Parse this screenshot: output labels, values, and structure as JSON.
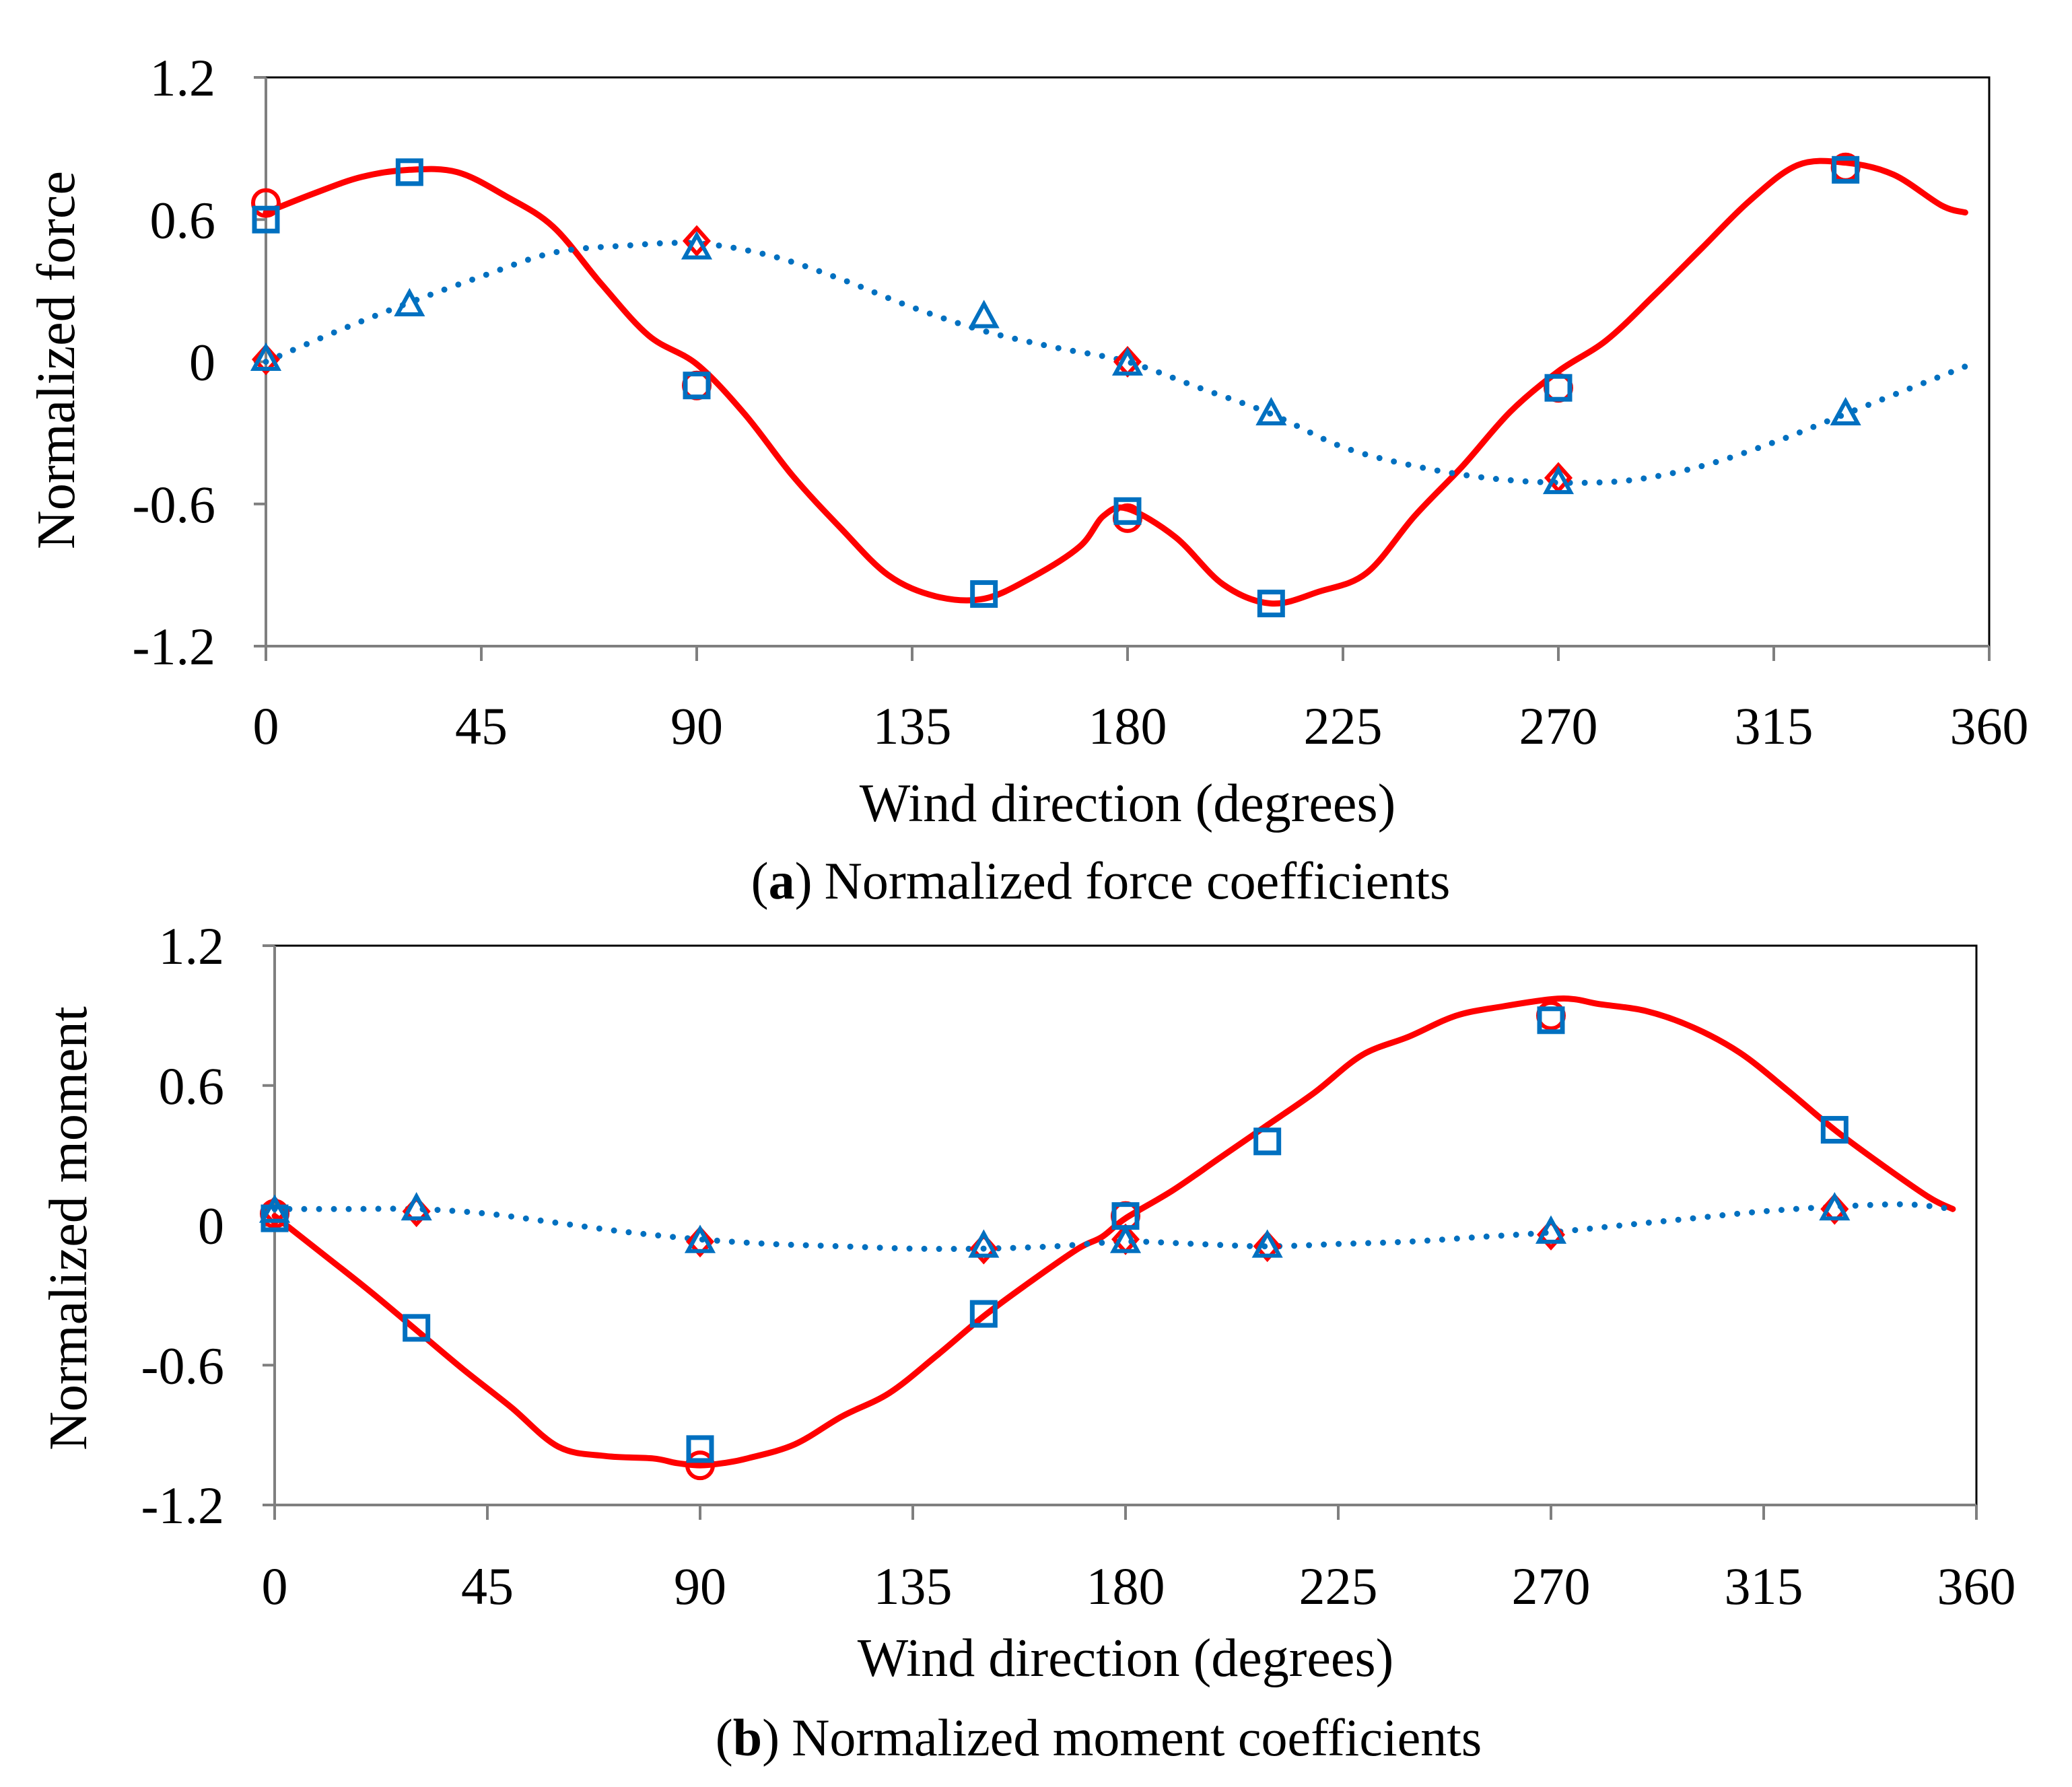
{
  "figure": {
    "colors": {
      "solid": "#ff0000",
      "dotted": "#0070c0",
      "circle": "#ff0000",
      "square": "#0070c0",
      "triangle": "#0070c0",
      "axis": "#7f7f7f",
      "frame": "#000000"
    }
  },
  "chart_data": [
    {
      "type": "line",
      "caption_letter": "a",
      "caption_text": "Normalized force coefficients",
      "caption_open": "(",
      "caption_close": ")",
      "xlabel": "Wind direction (degrees)",
      "ylabel": "Normalized force",
      "xlim": [
        0,
        360
      ],
      "ylim": [
        -1.2,
        1.2
      ],
      "xticks": [
        0,
        45,
        90,
        135,
        180,
        225,
        270,
        315,
        360
      ],
      "yticks": [
        1.2,
        0.6,
        0,
        -0.6,
        -1.2
      ],
      "ytick_labels": [
        "1.2",
        "0.6",
        "0",
        "-0.6",
        "-1.2"
      ],
      "series": [
        {
          "name": "solid line",
          "style": "solid",
          "x": [
            0,
            10,
            20,
            30,
            40,
            50,
            60,
            70,
            80,
            90,
            100,
            110,
            120,
            130,
            140,
            150,
            160,
            170,
            175,
            180,
            190,
            200,
            210,
            220,
            230,
            240,
            250,
            260,
            270,
            280,
            290,
            300,
            310,
            320,
            330,
            340,
            350,
            355
          ],
          "y": [
            0.63,
            0.71,
            0.78,
            0.81,
            0.8,
            0.7,
            0.57,
            0.33,
            0.11,
            -0.01,
            -0.22,
            -0.48,
            -0.7,
            -0.9,
            -0.99,
            -1.0,
            -0.91,
            -0.78,
            -0.65,
            -0.62,
            -0.74,
            -0.94,
            -1.02,
            -0.97,
            -0.89,
            -0.65,
            -0.44,
            -0.21,
            -0.04,
            0.09,
            0.28,
            0.48,
            0.68,
            0.83,
            0.84,
            0.79,
            0.66,
            0.63
          ]
        },
        {
          "name": "dotted line",
          "style": "dotted",
          "x": [
            0,
            15,
            30,
            45,
            60,
            75,
            90,
            105,
            120,
            135,
            150,
            165,
            180,
            195,
            210,
            225,
            240,
            255,
            270,
            285,
            300,
            315,
            330,
            345,
            355
          ],
          "y": [
            0.0,
            0.13,
            0.25,
            0.36,
            0.46,
            0.49,
            0.5,
            0.45,
            0.35,
            0.23,
            0.13,
            0.06,
            0.0,
            -0.11,
            -0.22,
            -0.36,
            -0.44,
            -0.49,
            -0.51,
            -0.5,
            -0.44,
            -0.34,
            -0.22,
            -0.1,
            -0.02
          ]
        },
        {
          "name": "circle markers",
          "marker": "circle",
          "x": [
            0,
            90,
            180,
            270,
            330
          ],
          "y": [
            0.67,
            -0.1,
            -0.66,
            -0.11,
            0.82
          ]
        },
        {
          "name": "square markers",
          "marker": "square",
          "x": [
            0,
            30,
            90,
            150,
            180,
            210,
            270,
            330
          ],
          "y": [
            0.6,
            0.8,
            -0.1,
            -0.98,
            -0.63,
            -1.02,
            -0.11,
            0.81
          ]
        },
        {
          "name": "diamond markers",
          "marker": "diamond",
          "x": [
            0,
            90,
            180,
            270
          ],
          "y": [
            0.01,
            0.51,
            0.0,
            -0.49
          ]
        },
        {
          "name": "triangle markers",
          "marker": "triangle",
          "x": [
            0,
            30,
            90,
            150,
            180,
            210,
            270,
            330
          ],
          "y": [
            0.01,
            0.24,
            0.48,
            0.19,
            -0.01,
            -0.22,
            -0.51,
            -0.22
          ]
        }
      ]
    },
    {
      "type": "line",
      "caption_letter": "b",
      "caption_text": "Normalized moment coefficients",
      "caption_open": "(",
      "caption_close": ")",
      "xlabel": "Wind direction (degrees)",
      "ylabel": "Normalized moment",
      "xlim": [
        0,
        360
      ],
      "ylim": [
        -1.2,
        1.2
      ],
      "xticks": [
        0,
        45,
        90,
        135,
        180,
        225,
        270,
        315,
        360
      ],
      "yticks": [
        1.2,
        0.6,
        0,
        -0.6,
        -1.2
      ],
      "ytick_labels": [
        "1.2",
        "0.6",
        "0",
        "-0.6",
        "-1.2"
      ],
      "series": [
        {
          "name": "solid line",
          "style": "solid",
          "x": [
            0,
            10,
            20,
            30,
            40,
            50,
            60,
            70,
            80,
            85,
            90,
            95,
            100,
            110,
            120,
            130,
            140,
            150,
            160,
            170,
            175,
            180,
            190,
            200,
            210,
            220,
            230,
            240,
            250,
            260,
            270,
            275,
            280,
            290,
            300,
            310,
            320,
            330,
            340,
            350,
            355
          ],
          "y": [
            0.04,
            -0.12,
            -0.28,
            -0.45,
            -0.62,
            -0.78,
            -0.95,
            -0.99,
            -1.0,
            -1.02,
            -1.03,
            -1.02,
            -1.0,
            -0.94,
            -0.82,
            -0.72,
            -0.56,
            -0.39,
            -0.24,
            -0.1,
            -0.05,
            0.03,
            0.15,
            0.29,
            0.43,
            0.57,
            0.73,
            0.81,
            0.9,
            0.94,
            0.97,
            0.97,
            0.95,
            0.92,
            0.85,
            0.74,
            0.58,
            0.41,
            0.26,
            0.12,
            0.07
          ]
        },
        {
          "name": "dotted line",
          "style": "dotted",
          "x": [
            0,
            15,
            30,
            45,
            60,
            75,
            90,
            105,
            120,
            135,
            150,
            165,
            180,
            195,
            210,
            225,
            240,
            255,
            270,
            285,
            300,
            315,
            330,
            345,
            355
          ],
          "y": [
            0.07,
            0.07,
            0.07,
            0.05,
            0.01,
            -0.03,
            -0.06,
            -0.08,
            -0.09,
            -0.1,
            -0.1,
            -0.09,
            -0.07,
            -0.08,
            -0.09,
            -0.08,
            -0.07,
            -0.05,
            -0.03,
            0.0,
            0.03,
            0.06,
            0.08,
            0.09,
            0.07
          ]
        },
        {
          "name": "circle markers",
          "marker": "circle",
          "x": [
            0,
            90,
            180,
            270
          ],
          "y": [
            0.05,
            -1.03,
            0.04,
            0.9
          ]
        },
        {
          "name": "square markers",
          "marker": "square",
          "x": [
            0,
            30,
            90,
            150,
            180,
            210,
            270,
            330
          ],
          "y": [
            0.03,
            -0.44,
            -0.96,
            -0.38,
            0.04,
            0.36,
            0.88,
            0.41
          ]
        },
        {
          "name": "diamond markers",
          "marker": "diamond",
          "x": [
            0,
            30,
            90,
            150,
            180,
            210,
            270,
            330
          ],
          "y": [
            0.06,
            0.06,
            -0.07,
            -0.1,
            -0.06,
            -0.09,
            -0.04,
            0.07
          ]
        },
        {
          "name": "triangle markers",
          "marker": "triangle",
          "x": [
            0,
            30,
            90,
            150,
            180,
            210,
            270,
            330
          ],
          "y": [
            0.06,
            0.07,
            -0.07,
            -0.09,
            -0.07,
            -0.09,
            -0.03,
            0.07
          ]
        }
      ]
    }
  ]
}
